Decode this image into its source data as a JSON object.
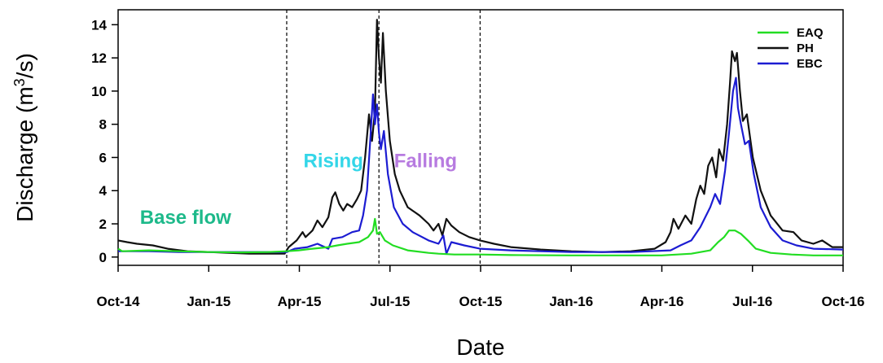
{
  "chart_data": {
    "type": "line",
    "xlabel": "Date",
    "ylabel_main": "Discharge (m",
    "ylabel_sup": "3",
    "ylabel_end": "/s)",
    "x_ticks": [
      "Oct-14",
      "Jan-15",
      "Apr-15",
      "Jul-15",
      "Oct-15",
      "Jan-16",
      "Apr-16",
      "Jul-16",
      "Oct-16"
    ],
    "y_ticks": [
      "0",
      "2",
      "4",
      "6",
      "8",
      "10",
      "12",
      "14"
    ],
    "xlim": [
      "2014-10-01",
      "2016-10-01"
    ],
    "ylim": [
      -0.5,
      14.9
    ],
    "grid": false,
    "legend_position": "top-right",
    "vlines": [
      "2015-03-20",
      "2015-06-21",
      "2015-10-01"
    ],
    "annotations": [
      {
        "text": "Base flow",
        "x": "2014-12-08",
        "y": 2.0,
        "color": "#1db98a"
      },
      {
        "text": "Rising",
        "x": "2015-05-06",
        "y": 5.4,
        "color": "#33d6e8"
      },
      {
        "text": "Falling",
        "x": "2015-08-07",
        "y": 5.4,
        "color": "#b77be0"
      }
    ],
    "series": [
      {
        "name": "EAQ",
        "color": "#22dd22",
        "points": [
          [
            "2014-10-01",
            0.5
          ],
          [
            "2014-10-05",
            0.35
          ],
          [
            "2014-11-01",
            0.4
          ],
          [
            "2014-12-01",
            0.35
          ],
          [
            "2015-01-01",
            0.3
          ],
          [
            "2015-02-01",
            0.28
          ],
          [
            "2015-03-01",
            0.3
          ],
          [
            "2015-03-20",
            0.35
          ],
          [
            "2015-04-01",
            0.4
          ],
          [
            "2015-04-15",
            0.5
          ],
          [
            "2015-05-01",
            0.6
          ],
          [
            "2015-05-10",
            0.7
          ],
          [
            "2015-05-20",
            0.8
          ],
          [
            "2015-06-01",
            0.9
          ],
          [
            "2015-06-10",
            1.2
          ],
          [
            "2015-06-15",
            1.6
          ],
          [
            "2015-06-17",
            2.3
          ],
          [
            "2015-06-19",
            1.4
          ],
          [
            "2015-06-22",
            1.5
          ],
          [
            "2015-06-27",
            1.0
          ],
          [
            "2015-07-05",
            0.7
          ],
          [
            "2015-07-20",
            0.4
          ],
          [
            "2015-08-10",
            0.25
          ],
          [
            "2015-08-20",
            0.2
          ],
          [
            "2015-09-05",
            0.15
          ],
          [
            "2015-10-01",
            0.15
          ],
          [
            "2015-11-01",
            0.12
          ],
          [
            "2016-01-01",
            0.1
          ],
          [
            "2016-03-01",
            0.1
          ],
          [
            "2016-04-01",
            0.1
          ],
          [
            "2016-05-01",
            0.2
          ],
          [
            "2016-05-20",
            0.4
          ],
          [
            "2016-05-28",
            0.9
          ],
          [
            "2016-06-03",
            1.2
          ],
          [
            "2016-06-08",
            1.6
          ],
          [
            "2016-06-14",
            1.6
          ],
          [
            "2016-06-20",
            1.4
          ],
          [
            "2016-06-27",
            1.0
          ],
          [
            "2016-07-05",
            0.5
          ],
          [
            "2016-07-20",
            0.25
          ],
          [
            "2016-08-10",
            0.15
          ],
          [
            "2016-09-01",
            0.1
          ],
          [
            "2016-10-01",
            0.1
          ]
        ]
      },
      {
        "name": "PH",
        "color": "#111111",
        "points": [
          [
            "2014-10-01",
            1.0
          ],
          [
            "2014-10-10",
            0.9
          ],
          [
            "2014-10-20",
            0.8
          ],
          [
            "2014-11-05",
            0.7
          ],
          [
            "2014-11-20",
            0.5
          ],
          [
            "2014-12-10",
            0.35
          ],
          [
            "2015-01-01",
            0.3
          ],
          [
            "2015-01-20",
            0.25
          ],
          [
            "2015-02-10",
            0.2
          ],
          [
            "2015-03-01",
            0.2
          ],
          [
            "2015-03-18",
            0.2
          ],
          [
            "2015-03-22",
            0.6
          ],
          [
            "2015-03-30",
            1.0
          ],
          [
            "2015-04-05",
            1.5
          ],
          [
            "2015-04-08",
            1.2
          ],
          [
            "2015-04-15",
            1.6
          ],
          [
            "2015-04-20",
            2.2
          ],
          [
            "2015-04-25",
            1.8
          ],
          [
            "2015-05-01",
            2.4
          ],
          [
            "2015-05-05",
            3.6
          ],
          [
            "2015-05-08",
            3.9
          ],
          [
            "2015-05-12",
            3.2
          ],
          [
            "2015-05-16",
            2.8
          ],
          [
            "2015-05-20",
            3.2
          ],
          [
            "2015-05-25",
            3.0
          ],
          [
            "2015-05-30",
            3.5
          ],
          [
            "2015-06-03",
            4.0
          ],
          [
            "2015-06-07",
            6.0
          ],
          [
            "2015-06-11",
            8.6
          ],
          [
            "2015-06-14",
            7.0
          ],
          [
            "2015-06-17",
            8.8
          ],
          [
            "2015-06-19",
            14.3
          ],
          [
            "2015-06-21",
            12.0
          ],
          [
            "2015-06-23",
            10.5
          ],
          [
            "2015-06-25",
            13.5
          ],
          [
            "2015-06-28",
            10.0
          ],
          [
            "2015-07-02",
            7.0
          ],
          [
            "2015-07-07",
            5.0
          ],
          [
            "2015-07-12",
            4.0
          ],
          [
            "2015-07-20",
            3.0
          ],
          [
            "2015-08-01",
            2.5
          ],
          [
            "2015-08-10",
            2.0
          ],
          [
            "2015-08-15",
            1.6
          ],
          [
            "2015-08-20",
            2.0
          ],
          [
            "2015-08-24",
            1.3
          ],
          [
            "2015-08-28",
            2.3
          ],
          [
            "2015-09-02",
            1.9
          ],
          [
            "2015-09-10",
            1.5
          ],
          [
            "2015-09-20",
            1.2
          ],
          [
            "2015-10-01",
            1.0
          ],
          [
            "2015-10-15",
            0.8
          ],
          [
            "2015-11-01",
            0.6
          ],
          [
            "2015-12-01",
            0.45
          ],
          [
            "2016-01-01",
            0.35
          ],
          [
            "2016-02-01",
            0.3
          ],
          [
            "2016-03-01",
            0.35
          ],
          [
            "2016-03-25",
            0.5
          ],
          [
            "2016-04-05",
            0.9
          ],
          [
            "2016-04-10",
            1.5
          ],
          [
            "2016-04-13",
            2.3
          ],
          [
            "2016-04-18",
            1.7
          ],
          [
            "2016-04-25",
            2.5
          ],
          [
            "2016-05-01",
            2.0
          ],
          [
            "2016-05-06",
            3.5
          ],
          [
            "2016-05-10",
            4.3
          ],
          [
            "2016-05-14",
            3.8
          ],
          [
            "2016-05-18",
            5.5
          ],
          [
            "2016-05-22",
            6.0
          ],
          [
            "2016-05-26",
            4.8
          ],
          [
            "2016-05-29",
            6.5
          ],
          [
            "2016-06-02",
            5.8
          ],
          [
            "2016-06-06",
            8.0
          ],
          [
            "2016-06-09",
            10.5
          ],
          [
            "2016-06-11",
            12.4
          ],
          [
            "2016-06-14",
            11.8
          ],
          [
            "2016-06-16",
            12.3
          ],
          [
            "2016-06-19",
            10.0
          ],
          [
            "2016-06-22",
            8.2
          ],
          [
            "2016-06-26",
            8.6
          ],
          [
            "2016-07-02",
            6.0
          ],
          [
            "2016-07-10",
            4.0
          ],
          [
            "2016-07-20",
            2.5
          ],
          [
            "2016-08-01",
            1.6
          ],
          [
            "2016-08-12",
            1.5
          ],
          [
            "2016-08-20",
            1.0
          ],
          [
            "2016-09-01",
            0.8
          ],
          [
            "2016-09-10",
            1.0
          ],
          [
            "2016-09-20",
            0.6
          ],
          [
            "2016-10-01",
            0.6
          ]
        ]
      },
      {
        "name": "EBC",
        "color": "#1c1cd2",
        "points": [
          [
            "2014-10-01",
            0.35
          ],
          [
            "2014-11-01",
            0.35
          ],
          [
            "2014-12-01",
            0.3
          ],
          [
            "2015-01-01",
            0.3
          ],
          [
            "2015-02-01",
            0.3
          ],
          [
            "2015-03-01",
            0.3
          ],
          [
            "2015-03-20",
            0.3
          ],
          [
            "2015-03-28",
            0.5
          ],
          [
            "2015-04-10",
            0.6
          ],
          [
            "2015-04-20",
            0.8
          ],
          [
            "2015-05-01",
            0.5
          ],
          [
            "2015-05-05",
            1.1
          ],
          [
            "2015-05-15",
            1.2
          ],
          [
            "2015-05-25",
            1.5
          ],
          [
            "2015-06-01",
            1.6
          ],
          [
            "2015-06-05",
            2.5
          ],
          [
            "2015-06-09",
            4.0
          ],
          [
            "2015-06-13",
            7.8
          ],
          [
            "2015-06-15",
            9.8
          ],
          [
            "2015-06-17",
            8.0
          ],
          [
            "2015-06-19",
            9.2
          ],
          [
            "2015-06-21",
            7.5
          ],
          [
            "2015-06-23",
            6.5
          ],
          [
            "2015-06-26",
            7.6
          ],
          [
            "2015-06-30",
            5.0
          ],
          [
            "2015-07-06",
            3.0
          ],
          [
            "2015-07-15",
            2.0
          ],
          [
            "2015-07-25",
            1.5
          ],
          [
            "2015-08-10",
            1.0
          ],
          [
            "2015-08-20",
            0.8
          ],
          [
            "2015-08-25",
            1.3
          ],
          [
            "2015-08-28",
            0.2
          ],
          [
            "2015-09-02",
            0.9
          ],
          [
            "2015-09-15",
            0.7
          ],
          [
            "2015-10-01",
            0.5
          ],
          [
            "2015-11-01",
            0.4
          ],
          [
            "2015-12-01",
            0.35
          ],
          [
            "2016-01-01",
            0.3
          ],
          [
            "2016-03-01",
            0.3
          ],
          [
            "2016-04-10",
            0.4
          ],
          [
            "2016-04-20",
            0.7
          ],
          [
            "2016-05-01",
            1.0
          ],
          [
            "2016-05-10",
            1.8
          ],
          [
            "2016-05-20",
            3.0
          ],
          [
            "2016-05-25",
            3.8
          ],
          [
            "2016-05-30",
            3.2
          ],
          [
            "2016-06-04",
            5.2
          ],
          [
            "2016-06-08",
            7.5
          ],
          [
            "2016-06-12",
            10.0
          ],
          [
            "2016-06-15",
            10.8
          ],
          [
            "2016-06-17",
            9.0
          ],
          [
            "2016-06-20",
            8.0
          ],
          [
            "2016-06-24",
            6.8
          ],
          [
            "2016-06-28",
            7.0
          ],
          [
            "2016-07-03",
            5.0
          ],
          [
            "2016-07-10",
            3.0
          ],
          [
            "2016-07-20",
            1.8
          ],
          [
            "2016-08-01",
            1.0
          ],
          [
            "2016-08-15",
            0.7
          ],
          [
            "2016-09-01",
            0.5
          ],
          [
            "2016-10-01",
            0.45
          ]
        ]
      }
    ]
  }
}
